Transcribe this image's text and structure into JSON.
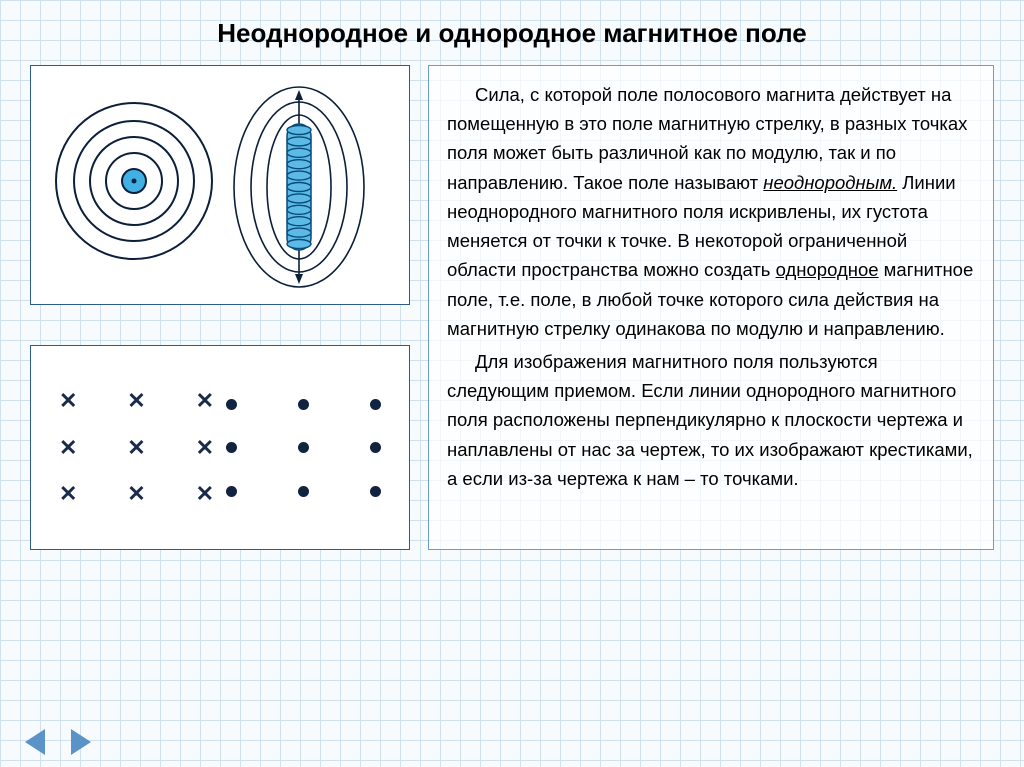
{
  "title": "Неоднородное и однородное магнитное поле",
  "paragraph1_html": "<span class='indent'></span>Сила, с которой поле полосового магнита действует на помещенную в это поле магнитную стрелку, в разных точках поля может быть различной как по модулю, так и по направлению. Такое поле называют <span class='u-em'>неоднородным.</span> Линии неоднородного магнитного поля искривлены, их густота меняется от точки к точке. В некоторой ограниченной области пространства можно создать <span class='u'>однородное</span> магнитное поле, т.е. поле, в любой точке которого сила действия на магнитную стрелку одинакова по модулю и направлению.",
  "paragraph2_html": "<span class='indent'></span>Для изображения магнитного поля пользуются следующим приемом. Если линии однородного магнитного поля расположены перпендикулярно к плоскости чертежа и наплавлены от нас за чертеж, то их изображают крестиками, а если из-за чертежа к нам – то точками.",
  "figure1": {
    "concentric": {
      "stroke": "#0b1e3a",
      "stroke_width": 2,
      "fill_center": "#41b0e4",
      "radii": [
        12,
        28,
        44,
        60,
        78
      ]
    },
    "solenoid": {
      "coil_fill": "#5bbbe6",
      "coil_stroke": "#0b4a77",
      "field_stroke": "#0b1e3a"
    }
  },
  "figure2": {
    "cross_color": "#1a2a4a",
    "dot_color": "#122341",
    "rows": 3,
    "cols": 3
  },
  "colors": {
    "border": "#2a5b8c",
    "panel_border": "#6b9ccd",
    "nav_arrow": "#5b93c9",
    "page_bg": "#f8fbfe",
    "grid_line": "#cfe0ef"
  }
}
